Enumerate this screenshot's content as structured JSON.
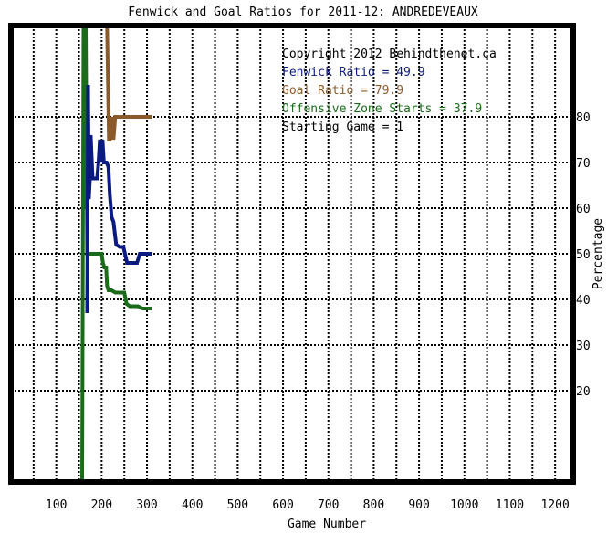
{
  "chart_data": {
    "type": "line",
    "title": "Fenwick and Goal Ratios for 2011-12: ANDREDEVEAUX",
    "xlabel": "Game Number",
    "ylabel": "Percentage",
    "xlim": [
      0,
      1240
    ],
    "ylim": [
      0,
      100
    ],
    "x_ticks": [
      100,
      200,
      300,
      400,
      500,
      600,
      700,
      800,
      900,
      1000,
      1100,
      1200
    ],
    "y_ticks": [
      20,
      30,
      40,
      50,
      60,
      70,
      80
    ],
    "legend": {
      "placement": "top-right",
      "lines": [
        {
          "text": "Copyright 2012 Behindthenet.ca",
          "color": "#000000"
        },
        {
          "text": "Fenwick Ratio = 49.9",
          "color": "#0b1a80"
        },
        {
          "text": "Goal Ratio = 79.9",
          "color": "#8b5a2b"
        },
        {
          "text": "Offensive Zone Starts = 37.9",
          "color": "#1a6b1a"
        },
        {
          "text": "Starting Game = 1",
          "color": "#000000"
        }
      ]
    },
    "series": [
      {
        "color": "#1a6b1a",
        "x": [
          157,
          160,
          163,
          165,
          168,
          172,
          175,
          178,
          182,
          190,
          196,
          200,
          203,
          206,
          210,
          212,
          215,
          222,
          230,
          240,
          250,
          255,
          262,
          270,
          280,
          290,
          300,
          310
        ],
        "y": [
          0,
          100,
          60,
          100,
          50,
          50,
          50,
          50,
          50,
          50,
          50,
          50,
          48,
          47,
          47,
          43,
          42,
          42,
          41.5,
          41.5,
          41.5,
          39,
          38.5,
          38.5,
          38.5,
          38,
          38,
          38
        ]
      },
      {
        "color": "#0b1a80",
        "x": [
          168,
          170,
          172,
          174,
          176,
          180,
          186,
          190,
          193,
          196,
          199,
          202,
          205,
          208,
          211,
          215,
          218,
          222,
          226,
          232,
          240,
          248,
          256,
          262,
          270,
          278,
          284,
          292,
          300,
          310
        ],
        "y": [
          37,
          87,
          62,
          66,
          76,
          66.5,
          66.5,
          66.5,
          70,
          75,
          70,
          75,
          70,
          70,
          70,
          69,
          63,
          58,
          57,
          52,
          51.5,
          51.5,
          48,
          48,
          48,
          48,
          50,
          50,
          50,
          50
        ]
      },
      {
        "color": "#8b5a2b",
        "x": [
          208,
          212,
          216,
          218,
          222,
          226,
          230,
          236,
          250,
          270,
          290,
          310
        ],
        "y": [
          100,
          100,
          75,
          75,
          80,
          75,
          80,
          80,
          80,
          80,
          80,
          80
        ]
      }
    ],
    "grid": true
  }
}
